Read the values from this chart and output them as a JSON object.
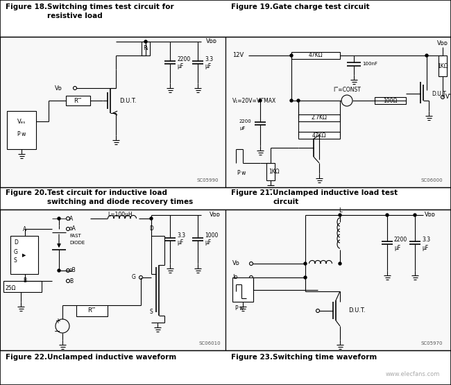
{
  "fig_width": 6.5,
  "fig_height": 5.55,
  "dpi": 100,
  "bg_color": "#ffffff",
  "border_color": "#000000",
  "text_color": "#000000",
  "panel_line_color": "#000000",
  "title_color": "#1a1a1a",
  "sc_color": "#555555",
  "watermark_color": "#aaaaaa",
  "panel_bg": "#f9f9f9",
  "title18_line1": "Figure 18.",
  "title18_line2": "Switching times test circuit for",
  "title18_line3": "resistive load",
  "title19_line1": "Figure 19.",
  "title19_line2": "Gate charge test circuit",
  "title20_line1": "Figure 20.",
  "title20_line2": "Test circuit for inductive load",
  "title20_line3": "switching and diode recovery times",
  "title21_line1": "Figure 21.",
  "title21_line2": "Unclamped inductive load test",
  "title21_line3": "circuit",
  "title22_line1": "Figure 22.",
  "title22_line2": "Unclamped inductive waveform",
  "title23_line1": "Figure 23.",
  "title23_line2": "Switching time waveform",
  "watermark": "www.elecfans.com"
}
